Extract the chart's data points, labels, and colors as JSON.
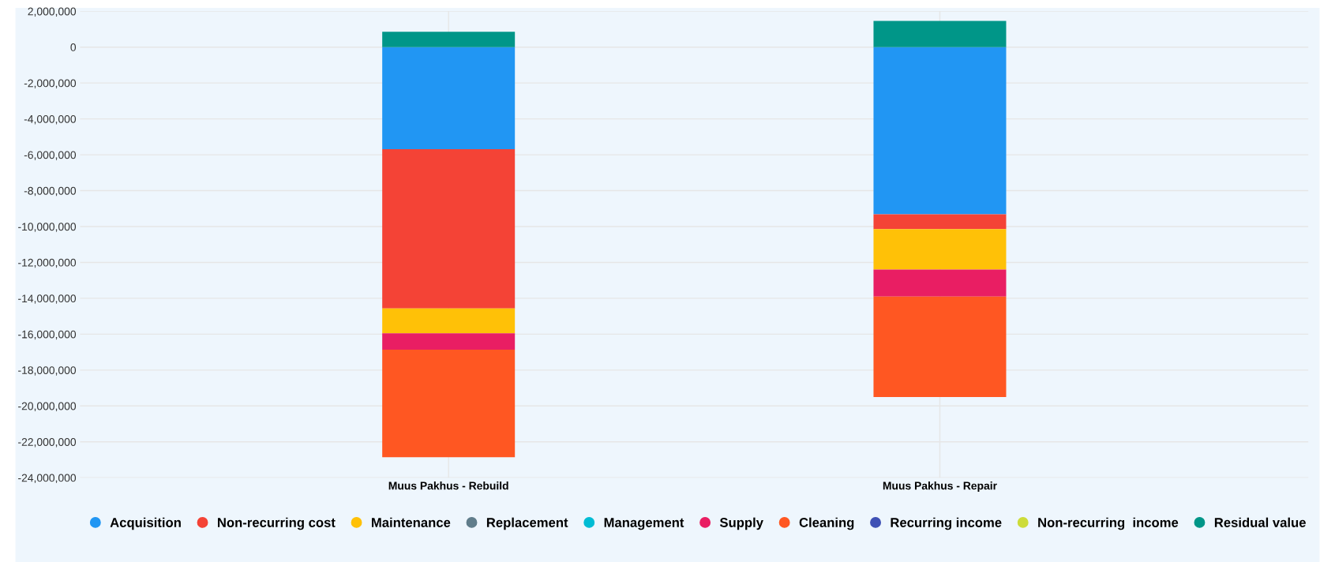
{
  "chart_data": {
    "type": "bar",
    "stacked": true,
    "categories": [
      "Muus Pakhus - Rebuild",
      "Muus Pakhus - Repair"
    ],
    "series": [
      {
        "name": "Acquisition",
        "color": "#2196f3",
        "values": [
          -5690000,
          -9320000
        ]
      },
      {
        "name": "Non-recurring cost",
        "color": "#f44336",
        "values": [
          -8870000,
          -820000
        ]
      },
      {
        "name": "Maintenance",
        "color": "#ffc107",
        "values": [
          -1390000,
          -2260000
        ]
      },
      {
        "name": "Replacement",
        "color": "#607d8b",
        "values": [
          0,
          0
        ]
      },
      {
        "name": "Management",
        "color": "#00bcd4",
        "values": [
          0,
          0
        ]
      },
      {
        "name": "Supply",
        "color": "#e91e63",
        "values": [
          -910000,
          -1500000
        ]
      },
      {
        "name": "Cleaning",
        "color": "#ff5722",
        "values": [
          -6000000,
          -5600000
        ]
      },
      {
        "name": "Recurring income",
        "color": "#3f51b5",
        "values": [
          0,
          0
        ]
      },
      {
        "name": "Non-recurring  income",
        "color": "#cddc39",
        "values": [
          0,
          0
        ]
      },
      {
        "name": "Residual value",
        "color": "#009688",
        "values": [
          860000,
          1460000
        ]
      }
    ],
    "ylim": [
      -24000000,
      2000000
    ],
    "yticks": [
      {
        "value": 2000000,
        "label": "2,000,000"
      },
      {
        "value": 0,
        "label": "0"
      },
      {
        "value": -2000000,
        "label": "-2,000,000"
      },
      {
        "value": -4000000,
        "label": "-4,000,000"
      },
      {
        "value": -6000000,
        "label": "-6,000,000"
      },
      {
        "value": -8000000,
        "label": "-8,000,000"
      },
      {
        "value": -10000000,
        "label": "-10,000,000"
      },
      {
        "value": -12000000,
        "label": "-12,000,000"
      },
      {
        "value": -14000000,
        "label": "-14,000,000"
      },
      {
        "value": -16000000,
        "label": "-16,000,000"
      },
      {
        "value": -18000000,
        "label": "-18,000,000"
      },
      {
        "value": -20000000,
        "label": "-20,000,000"
      },
      {
        "value": -22000000,
        "label": "-22,000,000"
      },
      {
        "value": -24000000,
        "label": "-24,000,000"
      }
    ],
    "grid": true,
    "legend": "bottom",
    "marker": "circle"
  }
}
